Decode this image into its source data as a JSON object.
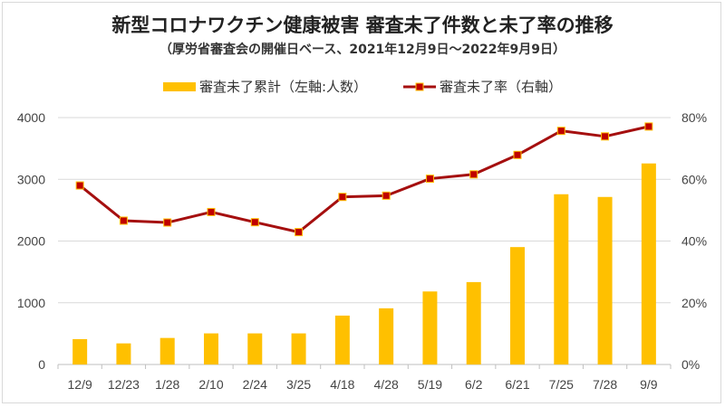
{
  "title": "新型コロナワクチン健康被害 審査未了件数と未了率の推移",
  "subtitle": "（厚労省審査会の開催日ベース、2021年12月9日～2022年9月9日）",
  "colors": {
    "bar": "#FFC000",
    "line": "#A50F0F",
    "marker_fill": "#C00000",
    "marker_edge": "#FFC000",
    "grid": "#d9d9d9"
  },
  "chart_data": {
    "type": "bar+line",
    "title": "新型コロナワクチン健康被害 審査未了件数と未了率の推移",
    "subtitle": "（厚労省審査会の開催日ベース、2021年12月9日～2022年9月9日）",
    "categories": [
      "12/9",
      "12/23",
      "1/28",
      "2/10",
      "2/24",
      "3/25",
      "4/18",
      "4/28",
      "5/19",
      "6/2",
      "6/21",
      "7/25",
      "7/28",
      "9/9"
    ],
    "series": [
      {
        "name": "審査未了累計（左軸:人数）",
        "type": "bar",
        "axis": "left",
        "values": [
          411,
          342,
          430,
          504,
          504,
          504,
          792,
          910,
          1183,
          1335,
          1902,
          2758,
          2714,
          3257
        ]
      },
      {
        "name": "審査未了率（右軸）",
        "type": "line",
        "axis": "right",
        "values": [
          58.0,
          46.6,
          46.0,
          49.4,
          46.1,
          42.9,
          54.3,
          54.7,
          60.2,
          61.6,
          67.9,
          75.7,
          73.9,
          77.1
        ]
      }
    ],
    "ylim_left": [
      0,
      4000
    ],
    "ylim_right": [
      0,
      80
    ],
    "left_ticks": [
      "0",
      "1000",
      "2000",
      "3000",
      "4000"
    ],
    "right_ticks": [
      "0%",
      "20%",
      "40%",
      "60%",
      "80%"
    ],
    "grid": true,
    "legend": "top-center"
  }
}
